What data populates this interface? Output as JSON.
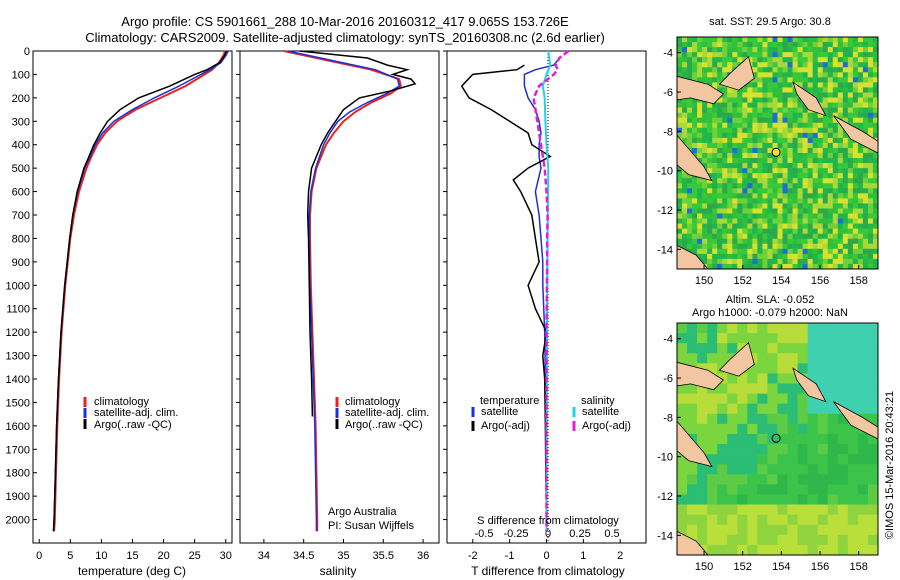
{
  "header": {
    "title_line1": "Argo profile: CS 5901661_288 10-Mar-2016 20160312_417 9.065S 153.726E",
    "title_line2": "Climatology: CARS2009. Satellite-adjusted climatology: synTS_20160308.nc (2.6d earlier)"
  },
  "colors": {
    "climatology": "#e8231f",
    "satellite": "#1f2fd6",
    "argo": "#000000",
    "salinity_sat": "#22d3e6",
    "salinity_argo": "#e020d8",
    "land": "#f2c6a0",
    "sea_green": "#2fbf3a"
  },
  "chart_data": [
    {
      "type": "line",
      "id": "temperature",
      "xlabel": "temperature (deg C)",
      "ylabel": "",
      "xlim": [
        -1,
        31
      ],
      "ylim": [
        2100,
        0
      ],
      "xticks": [
        "0",
        "5",
        "10",
        "15",
        "20",
        "25",
        "30"
      ],
      "yticks": [
        "0",
        "100",
        "200",
        "300",
        "400",
        "500",
        "600",
        "700",
        "800",
        "900",
        "1000",
        "1100",
        "1200",
        "1300",
        "1400",
        "1500",
        "1600",
        "1700",
        "1800",
        "1900",
        "2000"
      ],
      "legend": [
        "climatology",
        "satellite-adj. clim.",
        "Argo(..raw -QC)"
      ],
      "series": [
        {
          "name": "climatology",
          "color_key": "climatology",
          "depth": [
            0,
            20,
            50,
            80,
            100,
            150,
            200,
            250,
            300,
            350,
            400,
            450,
            500,
            600,
            700,
            800,
            900,
            1000,
            1200,
            1400,
            1600,
            1800,
            2000,
            2050
          ],
          "values": [
            29.9,
            29.6,
            28.9,
            27.8,
            26.6,
            23.5,
            19.5,
            15.5,
            12.5,
            10.6,
            9.3,
            8.4,
            7.6,
            6.4,
            5.6,
            5.0,
            4.6,
            4.2,
            3.6,
            3.2,
            2.9,
            2.7,
            2.5,
            2.4
          ]
        },
        {
          "name": "satellite-adj. clim.",
          "color_key": "satellite",
          "depth": [
            0,
            20,
            50,
            80,
            100,
            150,
            200,
            250,
            300,
            350,
            400,
            450,
            500,
            600,
            700,
            800,
            900,
            1000,
            1200,
            1400,
            1600,
            1800,
            2000,
            2050
          ],
          "values": [
            30.4,
            30.0,
            29.2,
            27.5,
            26.0,
            22.5,
            18.5,
            15.0,
            12.0,
            10.2,
            9.0,
            8.2,
            7.3,
            6.2,
            5.4,
            4.9,
            4.5,
            4.1,
            3.5,
            3.1,
            2.8,
            2.6,
            2.4,
            2.3
          ]
        },
        {
          "name": "Argo(..raw -QC)",
          "color_key": "argo",
          "depth": [
            0,
            20,
            50,
            80,
            100,
            150,
            200,
            250,
            300,
            350,
            400,
            450,
            500,
            600,
            700,
            800,
            900,
            1000,
            1200,
            1400,
            1600,
            1800,
            2000,
            2050
          ],
          "values": [
            30.1,
            29.8,
            29.0,
            27.0,
            25.0,
            21.0,
            16.0,
            13.0,
            11.0,
            9.8,
            8.8,
            8.0,
            7.2,
            6.1,
            5.4,
            4.9,
            4.5,
            4.1,
            3.5,
            3.1,
            2.8,
            2.6,
            2.4,
            2.3
          ]
        }
      ]
    },
    {
      "type": "line",
      "id": "salinity",
      "xlabel": "salinity",
      "xlim": [
        33.7,
        36.2
      ],
      "ylim": [
        2100,
        0
      ],
      "xticks": [
        "34",
        "34.5",
        "35",
        "35.5",
        "36"
      ],
      "legend": [
        "climatology",
        "satellite-adj. clim.",
        "Argo(..raw -QC)"
      ],
      "annotation_line1": "Argo Australia",
      "annotation_line2": "PI: Susan Wijffels",
      "series": [
        {
          "name": "climatology",
          "color_key": "climatology",
          "depth": [
            0,
            40,
            80,
            120,
            150,
            180,
            220,
            260,
            300,
            350,
            400,
            450,
            500,
            600,
            700,
            800,
            1000,
            1200,
            1400,
            1600,
            1800,
            2000,
            2050
          ],
          "values": [
            34.25,
            34.8,
            35.35,
            35.7,
            35.72,
            35.6,
            35.35,
            35.15,
            35.0,
            34.88,
            34.78,
            34.72,
            34.66,
            34.6,
            34.58,
            34.58,
            34.59,
            34.61,
            34.63,
            34.65,
            34.66,
            34.67,
            34.67
          ]
        },
        {
          "name": "satellite-adj. clim.",
          "color_key": "satellite",
          "depth": [
            0,
            40,
            80,
            120,
            150,
            180,
            220,
            260,
            300,
            350,
            400,
            450,
            500,
            600,
            700,
            800,
            1000,
            1200,
            1400,
            1600,
            1800,
            2000,
            2050
          ],
          "values": [
            34.3,
            34.85,
            35.4,
            35.68,
            35.7,
            35.55,
            35.3,
            35.08,
            34.93,
            34.83,
            34.75,
            34.7,
            34.65,
            34.59,
            34.57,
            34.57,
            34.58,
            34.6,
            34.62,
            34.64,
            34.65,
            34.66,
            34.66
          ]
        },
        {
          "name": "Argo(..raw -QC)",
          "color_key": "argo",
          "depth": [
            0,
            30,
            60,
            80,
            100,
            120,
            140,
            170,
            200,
            250,
            300,
            350,
            400,
            450,
            500,
            600,
            700,
            800,
            1000,
            1200,
            1400,
            1560
          ],
          "values": [
            34.45,
            35.3,
            35.55,
            35.8,
            35.62,
            35.85,
            35.9,
            35.6,
            35.2,
            35.0,
            34.9,
            34.8,
            34.72,
            34.66,
            34.6,
            34.56,
            34.55,
            34.56,
            34.57,
            34.58,
            34.6,
            34.61
          ]
        }
      ]
    },
    {
      "type": "line",
      "id": "difference",
      "xlabel": "T difference from climatology",
      "xlabel_top": "S difference from climatology",
      "xlim": [
        -2.7,
        2.7
      ],
      "ylim": [
        2100,
        0
      ],
      "xticks_T": [
        "-2",
        "-1",
        "0",
        "1",
        "2"
      ],
      "xticks_S": [
        "-0.5",
        "-0.25",
        "0",
        "0.25",
        "0.5"
      ],
      "legend_temperature_head": "temperature",
      "legend_salinity_head": "salinity",
      "legend_items": [
        "satellite",
        "Argo(-adj)",
        "satellite",
        "Argo(-adj)"
      ],
      "series": [
        {
          "name": "temperature satellite",
          "color_key": "satellite",
          "depth": [
            40,
            60,
            80,
            100,
            150,
            200,
            250,
            300,
            350,
            400,
            450,
            500,
            600,
            700,
            800,
            900,
            1000,
            1200,
            1400,
            1600,
            1800,
            2000,
            2050
          ],
          "values": [
            0.3,
            0.2,
            -0.3,
            -0.6,
            -0.6,
            -0.5,
            -0.3,
            -0.2,
            -0.15,
            -0.2,
            -0.2,
            -0.15,
            -0.3,
            -0.2,
            -0.15,
            -0.1,
            -0.1,
            -0.05,
            -0.03,
            -0.02,
            -0.01,
            0,
            0
          ]
        },
        {
          "name": "temperature Argo(-adj)",
          "color_key": "argo",
          "depth": [
            60,
            80,
            100,
            150,
            200,
            250,
            300,
            350,
            400,
            450,
            500,
            550,
            600,
            700,
            800,
            900,
            1000,
            1100,
            1200,
            1300,
            1400,
            1600,
            1800,
            2000,
            2050
          ],
          "values": [
            -0.6,
            -0.8,
            -2.0,
            -2.3,
            -2.1,
            -1.5,
            -1.0,
            -0.5,
            -0.4,
            0.1,
            -0.5,
            -0.9,
            -0.7,
            -0.4,
            -0.3,
            -0.2,
            -0.5,
            -0.3,
            0,
            -0.1,
            -0.05,
            -0.03,
            -0.02,
            0,
            0
          ]
        },
        {
          "name": "salinity satellite",
          "color_key": "salinity_sat",
          "depth": [
            0,
            60,
            100,
            150,
            200,
            300,
            400,
            500,
            600,
            800,
            1000,
            1200,
            1400,
            1600,
            1800,
            2000,
            2050
          ],
          "values": [
            0.05,
            0.1,
            0.0,
            -0.1,
            -0.05,
            -0.03,
            0.0,
            0.05,
            0.04,
            0.03,
            0.02,
            0.01,
            0.01,
            0.0,
            0.0,
            0.0,
            0.0
          ]
        },
        {
          "name": "salinity Argo(-adj)",
          "color_key": "salinity_argo",
          "depth": [
            0,
            30,
            60,
            80,
            100,
            150,
            200,
            300,
            400,
            500,
            600,
            700,
            800,
            900,
            1000,
            1200,
            1400,
            1600,
            1800,
            2000,
            2050
          ],
          "values": [
            0.6,
            0.35,
            0.25,
            0.3,
            0.2,
            -0.2,
            -0.35,
            -0.25,
            -0.15,
            -0.05,
            0.0,
            0.03,
            0.02,
            0.02,
            0.01,
            0.0,
            0.0,
            0.0,
            0.0,
            0.0,
            0.0
          ]
        }
      ]
    },
    {
      "type": "heatmap",
      "id": "sst-map",
      "title": "sat. SST: 29.5  Argo: 30.8",
      "xticks": [
        "150",
        "152",
        "154",
        "156",
        "158"
      ],
      "yticks": [
        "-4",
        "-6",
        "-8",
        "-10",
        "-12",
        "-14"
      ],
      "xlim": [
        148.6,
        159.0
      ],
      "ylim": [
        -15.0,
        -3.2
      ],
      "argo_position": [
        153.726,
        -9.065
      ]
    },
    {
      "type": "heatmap",
      "id": "sla-map",
      "title_line1": "Altim. SLA: -0.052",
      "title_line2": "Argo h1000: -0.079 h2000: NaN",
      "xticks": [
        "150",
        "152",
        "154",
        "156",
        "158"
      ],
      "yticks": [
        "-4",
        "-6",
        "-8",
        "-10",
        "-12",
        "-14"
      ],
      "xlim": [
        148.6,
        159.0
      ],
      "ylim": [
        -15.0,
        -3.2
      ],
      "argo_position": [
        153.726,
        -9.065
      ]
    }
  ],
  "footer": {
    "credit": "©IMOS 15-Mar-2016 20:43:21"
  }
}
